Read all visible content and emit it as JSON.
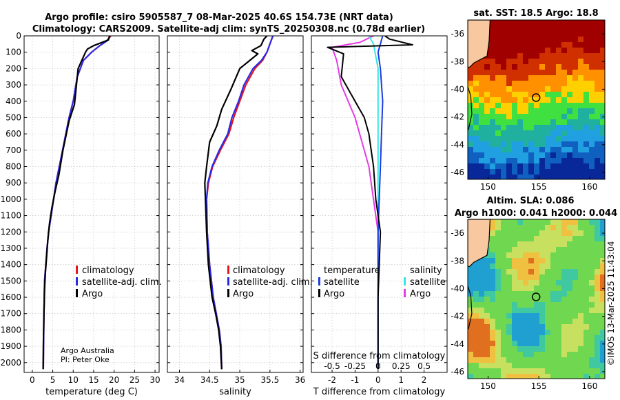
{
  "titles": {
    "main1": "Argo profile: csiro 5905587_7 08-Mar-2025 40.6S 154.73E (NRT data)",
    "main2": "Climatology: CARS2009. Satellite-adj clim: synTS_20250308.nc (0.78d earlier)",
    "map1": "sat. SST: 18.5 Argo: 18.8",
    "map2a": "Altim. SLA: 0.086",
    "map2b": "Argo h1000: 0.041 h2000: 0.044"
  },
  "credits": {
    "line1": "Argo Australia",
    "line2": "PI: Peter Oke"
  },
  "stamp": "©IMOS 13-Mar-2025 11:43:04",
  "legend1": {
    "clim": "climatology",
    "sat": "satellite-adj. clim.",
    "argo": "Argo"
  },
  "legend2": {
    "clim": "climatology",
    "sat": "satellite-adj. clim.",
    "argo": "Argo"
  },
  "legend3": {
    "thead": "temperature",
    "shead": "salinity",
    "tsat": "satellite",
    "targo": "Argo",
    "ssat": "satellite",
    "sargo": "Argo"
  },
  "colors": {
    "clim": "#e8141e",
    "sat": "#2a2ae6",
    "argo": "#000000",
    "tdiff": "#000000",
    "tsat": "#1a3ce0",
    "sdiff": "#e63ae6",
    "ssat": "#35e6e6"
  },
  "chart_data": [
    {
      "type": "line",
      "title": "",
      "xlabel": "temperature (deg C)",
      "ylabel": "",
      "xlim": [
        -2,
        31
      ],
      "ylim": [
        2060,
        0
      ],
      "xticks": [
        0,
        5,
        10,
        15,
        20,
        25,
        30
      ],
      "yticks": [
        0,
        100,
        200,
        300,
        400,
        500,
        600,
        700,
        800,
        900,
        1000,
        1100,
        1200,
        1300,
        1400,
        1500,
        1600,
        1700,
        1800,
        1900,
        2000
      ],
      "series": [
        {
          "name": "climatology",
          "x": [
            19.2,
            18.2,
            16.5,
            14.5,
            12.5,
            11.0,
            10.0,
            9.0,
            7.8,
            6.6,
            5.8,
            5.2,
            4.6,
            4.0,
            3.6,
            3.3,
            3.0,
            2.85,
            2.75,
            2.7
          ],
          "y": [
            0,
            30,
            60,
            100,
            150,
            250,
            400,
            500,
            650,
            800,
            900,
            1000,
            1100,
            1200,
            1300,
            1400,
            1500,
            1700,
            1900,
            2040
          ]
        },
        {
          "name": "satellite-adj. clim.",
          "x": [
            19.0,
            18.3,
            16.5,
            14.5,
            12.5,
            11.0,
            10.0,
            9.0,
            7.8,
            6.6,
            5.8,
            5.2,
            4.6,
            4.0,
            3.6,
            3.3,
            3.0,
            2.85,
            2.75,
            2.7
          ],
          "y": [
            0,
            30,
            60,
            100,
            150,
            250,
            400,
            500,
            650,
            800,
            900,
            1000,
            1100,
            1200,
            1300,
            1400,
            1500,
            1700,
            1900,
            2040
          ]
        },
        {
          "name": "Argo",
          "x": [
            18.9,
            18.6,
            15.0,
            13.5,
            13.0,
            11.2,
            10.3,
            9.0,
            7.5,
            6.5,
            5.6,
            4.8,
            4.2,
            3.8,
            3.5,
            3.2,
            3.0,
            2.8,
            2.7,
            2.65
          ],
          "y": [
            0,
            25,
            60,
            80,
            100,
            200,
            420,
            520,
            700,
            850,
            950,
            1050,
            1150,
            1250,
            1350,
            1450,
            1550,
            1750,
            1900,
            2040
          ]
        }
      ]
    },
    {
      "type": "line",
      "title": "",
      "xlabel": "salinity",
      "ylabel": "",
      "xlim": [
        33.8,
        36.05
      ],
      "ylim": [
        2060,
        0
      ],
      "xticks": [
        34,
        34.5,
        35,
        35.5,
        36
      ],
      "series": [
        {
          "name": "climatology",
          "x": [
            35.55,
            35.5,
            35.45,
            35.38,
            35.25,
            35.1,
            35.0,
            34.9,
            34.82,
            34.68,
            34.55,
            34.48,
            34.45,
            34.46,
            34.5,
            34.56,
            34.61,
            34.66,
            34.69,
            34.7
          ],
          "y": [
            0,
            50,
            100,
            150,
            200,
            300,
            400,
            500,
            600,
            700,
            800,
            900,
            1000,
            1200,
            1400,
            1600,
            1700,
            1800,
            1900,
            2040
          ]
        },
        {
          "name": "satellite-adj. clim.",
          "x": [
            35.55,
            35.5,
            35.45,
            35.36,
            35.22,
            35.07,
            34.98,
            34.87,
            34.8,
            34.66,
            34.54,
            34.47,
            34.45,
            34.46,
            34.5,
            34.56,
            34.61,
            34.66,
            34.69,
            34.7
          ],
          "y": [
            0,
            50,
            100,
            150,
            200,
            300,
            400,
            500,
            600,
            700,
            800,
            900,
            1000,
            1200,
            1400,
            1600,
            1700,
            1800,
            1900,
            2040
          ]
        },
        {
          "name": "Argo",
          "x": [
            35.45,
            35.4,
            35.35,
            35.2,
            35.3,
            35.0,
            34.85,
            34.7,
            34.62,
            34.5,
            34.45,
            34.42,
            34.43,
            34.45,
            34.48,
            34.54,
            34.6,
            34.65,
            34.68,
            34.7
          ],
          "y": [
            0,
            20,
            60,
            90,
            110,
            200,
            330,
            450,
            550,
            650,
            800,
            900,
            1000,
            1200,
            1400,
            1600,
            1700,
            1800,
            1900,
            2040
          ]
        }
      ]
    },
    {
      "type": "line",
      "title": "",
      "xlabel": "T difference from climatology",
      "top_axis_label": "S difference from climatology",
      "xlim": [
        -2.9,
        3.0
      ],
      "ylim": [
        2060,
        0
      ],
      "xticks": [
        -2,
        -1,
        0,
        1,
        2
      ],
      "top_xticks": [
        "-0.5",
        "-0.25",
        "0",
        "0.25",
        "0.5"
      ],
      "series": [
        {
          "name": "T difference Argo",
          "x": [
            0.3,
            0.5,
            1.5,
            -2.2,
            -1.5,
            -1.6,
            -1.0,
            -0.6,
            -0.4,
            -0.3,
            -0.2,
            -0.1,
            0.1,
            0.05,
            0.0,
            0.0,
            0.0
          ],
          "y": [
            0,
            20,
            55,
            70,
            110,
            250,
            400,
            500,
            600,
            700,
            800,
            1000,
            1200,
            1400,
            1600,
            1800,
            2040
          ]
        },
        {
          "name": "T difference satellite",
          "x": [
            0.2,
            0.1,
            0.0,
            0.1,
            0.2,
            0.15,
            0.1,
            0.05,
            0.0,
            0.0,
            0.0,
            0.0
          ],
          "y": [
            0,
            50,
            100,
            200,
            400,
            600,
            800,
            1000,
            1200,
            1400,
            1700,
            2040
          ]
        },
        {
          "name": "S difference Argo",
          "x": [
            -0.05,
            -0.2,
            -0.5,
            -0.45,
            -0.4,
            -0.25,
            -0.1,
            0.0,
            0.0
          ],
          "y": [
            0,
            40,
            70,
            150,
            300,
            500,
            800,
            1200,
            2040
          ]
        },
        {
          "name": "S difference satellite",
          "x": [
            -0.1,
            -0.05,
            0.0,
            0.0,
            0.0,
            0.0
          ],
          "y": [
            0,
            50,
            200,
            600,
            1200,
            2040
          ]
        }
      ]
    },
    {
      "type": "heatmap",
      "title": "sat. SST: 18.5 Argo: 18.8",
      "xlim": [
        148,
        161.5
      ],
      "ylim": [
        -46.5,
        -35
      ],
      "xticks": [
        150,
        155,
        160
      ],
      "yticks": [
        -36,
        -38,
        -40,
        -42,
        -44,
        -46
      ],
      "argo_position": [
        154.73,
        -40.6
      ]
    },
    {
      "type": "heatmap",
      "title": "Altim. SLA: 0.086 / Argo h1000: 0.041 h2000: 0.044",
      "xlim": [
        148,
        161.5
      ],
      "ylim": [
        -46.5,
        -35
      ],
      "xticks": [
        150,
        155,
        160
      ],
      "yticks": [
        -36,
        -38,
        -40,
        -42,
        -44,
        -46
      ],
      "argo_position": [
        154.73,
        -40.6
      ]
    }
  ]
}
